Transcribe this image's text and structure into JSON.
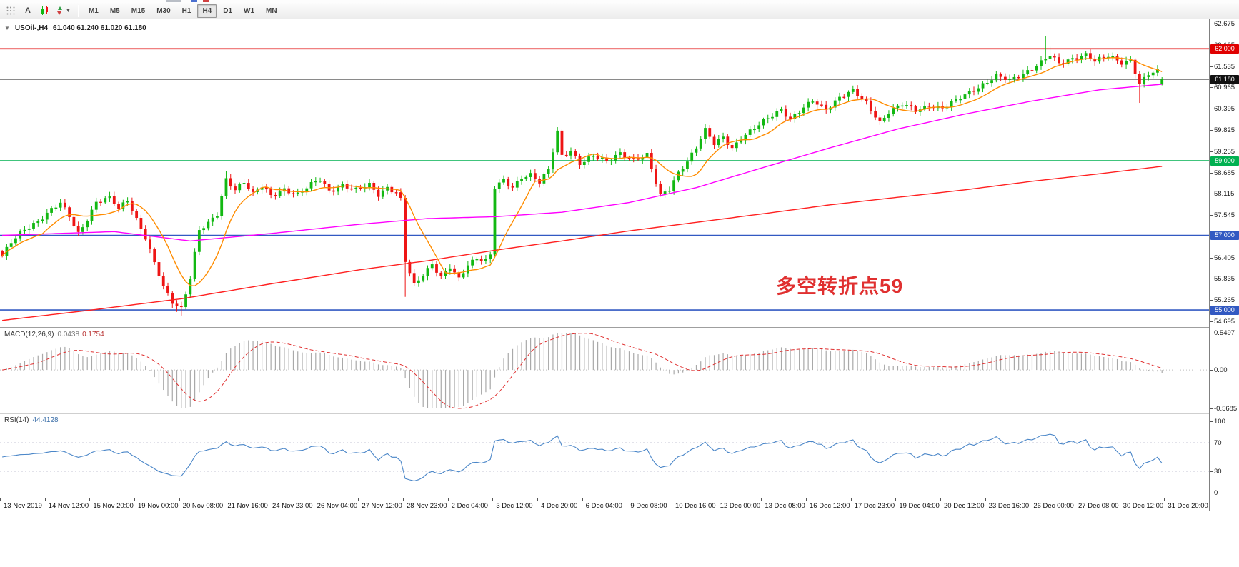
{
  "toolbar": {
    "a_label": "A",
    "timeframes": [
      "M1",
      "M5",
      "M15",
      "M30",
      "H1",
      "H4",
      "D1",
      "W1",
      "MN"
    ],
    "active_timeframe": "H4"
  },
  "chart": {
    "symbol_title": "USOil-,H4",
    "ohlc": "61.040 61.240 61.020 61.180",
    "annotation": {
      "text": "多空转折点59",
      "color": "#e03030"
    },
    "hlines": [
      {
        "price": 62.0,
        "label": "62.000",
        "color": "#e00000"
      },
      {
        "price": 59.0,
        "label": "59.000",
        "color": "#00b050"
      },
      {
        "price": 57.0,
        "label": "57.000",
        "color": "#3259c2"
      },
      {
        "price": 55.0,
        "label": "55.000",
        "color": "#3259c2"
      }
    ],
    "current_price": {
      "value": 61.18,
      "label": "61.180",
      "box_color": "#111111",
      "line_color": "#444444"
    }
  },
  "macd_panel": {
    "name": "MACD(12,26,9)",
    "value_main": "0.0438",
    "value_signal": "0.1754",
    "axis_labels": [
      "0.5497",
      "0.00",
      "-0.5685"
    ]
  },
  "rsi_panel": {
    "name": "RSI(14)",
    "value": "44.4128",
    "axis_labels": [
      "100",
      "70",
      "30",
      "0"
    ]
  },
  "chart_data": {
    "type": "candlestick",
    "title": "USOil-,H4",
    "y_axis": {
      "min": 54.695,
      "max": 62.675,
      "labels": [
        "62.675",
        "62.105",
        "61.535",
        "60.965",
        "60.395",
        "59.825",
        "59.255",
        "58.685",
        "58.115",
        "57.545",
        "56.975",
        "56.405",
        "55.835",
        "55.265",
        "54.695"
      ]
    },
    "x_labels": [
      "13 Nov 2019",
      "14 Nov 12:00",
      "15 Nov 20:00",
      "19 Nov 00:00",
      "20 Nov 08:00",
      "21 Nov 16:00",
      "24 Nov 23:00",
      "26 Nov 04:00",
      "27 Nov 12:00",
      "28 Nov 23:00",
      "2 Dec 04:00",
      "3 Dec 12:00",
      "4 Dec 20:00",
      "6 Dec 04:00",
      "9 Dec 08:00",
      "10 Dec 16:00",
      "12 Dec 00:00",
      "13 Dec 08:00",
      "16 Dec 12:00",
      "17 Dec 23:00",
      "19 Dec 04:00",
      "20 Dec 12:00",
      "23 Dec 16:00",
      "26 Dec 00:00",
      "27 Dec 08:00",
      "30 Dec 12:00",
      "31 Dec 20:00"
    ],
    "domain": 270,
    "candle_count": 260,
    "bars_per_x_label": 10,
    "up_color": "#12b812",
    "down_color": "#ee1515",
    "close_anchors": [
      [
        0,
        56.45
      ],
      [
        2,
        56.8
      ],
      [
        5,
        57.15
      ],
      [
        8,
        57.4
      ],
      [
        11,
        57.7
      ],
      [
        13,
        57.85
      ],
      [
        15,
        57.5
      ],
      [
        17,
        57.05
      ],
      [
        19,
        57.45
      ],
      [
        21,
        57.9
      ],
      [
        24,
        58.0
      ],
      [
        26,
        57.7
      ],
      [
        28,
        57.95
      ],
      [
        30,
        57.45
      ],
      [
        32,
        56.95
      ],
      [
        34,
        56.25
      ],
      [
        36,
        55.6
      ],
      [
        38,
        55.2
      ],
      [
        40,
        55.05
      ],
      [
        42,
        55.9
      ],
      [
        44,
        57.15
      ],
      [
        46,
        57.3
      ],
      [
        48,
        57.55
      ],
      [
        50,
        58.5
      ],
      [
        52,
        58.25
      ],
      [
        54,
        58.45
      ],
      [
        56,
        58.1
      ],
      [
        58,
        58.3
      ],
      [
        60,
        58.05
      ],
      [
        63,
        58.25
      ],
      [
        66,
        58.1
      ],
      [
        69,
        58.35
      ],
      [
        71,
        58.5
      ],
      [
        73,
        58.2
      ],
      [
        76,
        58.35
      ],
      [
        79,
        58.2
      ],
      [
        82,
        58.35
      ],
      [
        84,
        58.1
      ],
      [
        86,
        58.3
      ],
      [
        88,
        58.15
      ],
      [
        89,
        57.95
      ],
      [
        90,
        56.3
      ],
      [
        92,
        55.65
      ],
      [
        94,
        55.95
      ],
      [
        96,
        56.25
      ],
      [
        98,
        55.9
      ],
      [
        100,
        56.15
      ],
      [
        102,
        55.8
      ],
      [
        104,
        56.2
      ],
      [
        106,
        56.4
      ],
      [
        108,
        56.35
      ],
      [
        109,
        56.5
      ],
      [
        110,
        58.3
      ],
      [
        112,
        58.45
      ],
      [
        114,
        58.25
      ],
      [
        116,
        58.55
      ],
      [
        118,
        58.65
      ],
      [
        120,
        58.45
      ],
      [
        122,
        58.75
      ],
      [
        124,
        59.75
      ],
      [
        125,
        59.1
      ],
      [
        127,
        59.25
      ],
      [
        129,
        58.95
      ],
      [
        132,
        59.15
      ],
      [
        135,
        58.95
      ],
      [
        138,
        59.2
      ],
      [
        141,
        59.05
      ],
      [
        144,
        59.15
      ],
      [
        146,
        58.4
      ],
      [
        147,
        58.05
      ],
      [
        149,
        58.25
      ],
      [
        151,
        58.7
      ],
      [
        153,
        59.0
      ],
      [
        155,
        59.35
      ],
      [
        157,
        59.8
      ],
      [
        159,
        59.45
      ],
      [
        161,
        59.65
      ],
      [
        163,
        59.35
      ],
      [
        165,
        59.6
      ],
      [
        168,
        59.85
      ],
      [
        171,
        60.15
      ],
      [
        174,
        60.4
      ],
      [
        176,
        60.1
      ],
      [
        178,
        60.3
      ],
      [
        181,
        60.6
      ],
      [
        184,
        60.4
      ],
      [
        187,
        60.7
      ],
      [
        190,
        60.85
      ],
      [
        193,
        60.55
      ],
      [
        196,
        60.05
      ],
      [
        198,
        60.3
      ],
      [
        201,
        60.5
      ],
      [
        204,
        60.35
      ],
      [
        207,
        60.5
      ],
      [
        210,
        60.4
      ],
      [
        213,
        60.6
      ],
      [
        216,
        60.85
      ],
      [
        219,
        61.05
      ],
      [
        222,
        61.25
      ],
      [
        225,
        61.15
      ],
      [
        228,
        61.35
      ],
      [
        231,
        61.55
      ],
      [
        234,
        61.8
      ],
      [
        236,
        61.6
      ],
      [
        239,
        61.75
      ],
      [
        242,
        61.85
      ],
      [
        244,
        61.65
      ],
      [
        247,
        61.8
      ],
      [
        250,
        61.65
      ],
      [
        252,
        61.7
      ],
      [
        254,
        61.05
      ],
      [
        256,
        61.3
      ],
      [
        258,
        61.4
      ],
      [
        259,
        61.18
      ]
    ],
    "wicks": [
      {
        "i": 39,
        "l": 54.95
      },
      {
        "i": 40,
        "l": 54.85
      },
      {
        "i": 50,
        "h": 58.72
      },
      {
        "i": 90,
        "l": 55.35
      },
      {
        "i": 124,
        "h": 59.9
      },
      {
        "i": 157,
        "h": 59.97
      },
      {
        "i": 233,
        "h": 62.35
      },
      {
        "i": 234,
        "h": 62.05
      },
      {
        "i": 254,
        "l": 60.55
      }
    ],
    "last_candle": {
      "open": 61.04,
      "high": 61.24,
      "low": 61.02,
      "close": 61.18
    },
    "ma_fast": {
      "type": "sma",
      "period": 10,
      "color": "#ff8c00"
    },
    "ma_mid": {
      "color": "#ff00ff",
      "anchors": [
        [
          0,
          57.0
        ],
        [
          25,
          57.1
        ],
        [
          42,
          56.85
        ],
        [
          60,
          57.05
        ],
        [
          80,
          57.3
        ],
        [
          95,
          57.45
        ],
        [
          110,
          57.5
        ],
        [
          125,
          57.62
        ],
        [
          140,
          57.88
        ],
        [
          155,
          58.28
        ],
        [
          170,
          58.82
        ],
        [
          185,
          59.35
        ],
        [
          200,
          59.85
        ],
        [
          215,
          60.25
        ],
        [
          230,
          60.6
        ],
        [
          245,
          60.9
        ],
        [
          259,
          61.05
        ]
      ]
    },
    "ma_slow": {
      "color": "#ff2020",
      "anchors": [
        [
          0,
          54.72
        ],
        [
          20,
          55.0
        ],
        [
          40,
          55.3
        ],
        [
          60,
          55.7
        ],
        [
          80,
          56.08
        ],
        [
          95,
          56.32
        ],
        [
          110,
          56.6
        ],
        [
          125,
          56.85
        ],
        [
          140,
          57.12
        ],
        [
          155,
          57.35
        ],
        [
          170,
          57.58
        ],
        [
          185,
          57.82
        ],
        [
          200,
          58.02
        ],
        [
          215,
          58.22
        ],
        [
          230,
          58.45
        ],
        [
          245,
          58.65
        ],
        [
          259,
          58.85
        ]
      ]
    },
    "macd": {
      "params": [
        12,
        26,
        9
      ],
      "range": [
        -0.5685,
        0.5497
      ],
      "histogram_color": "#a9a9a9",
      "signal_color": "#e03030"
    },
    "rsi": {
      "period": 14,
      "range": [
        0,
        100
      ],
      "levels": [
        70,
        30
      ],
      "color": "#4a86c8",
      "level_color": "#c4c4d4"
    }
  }
}
